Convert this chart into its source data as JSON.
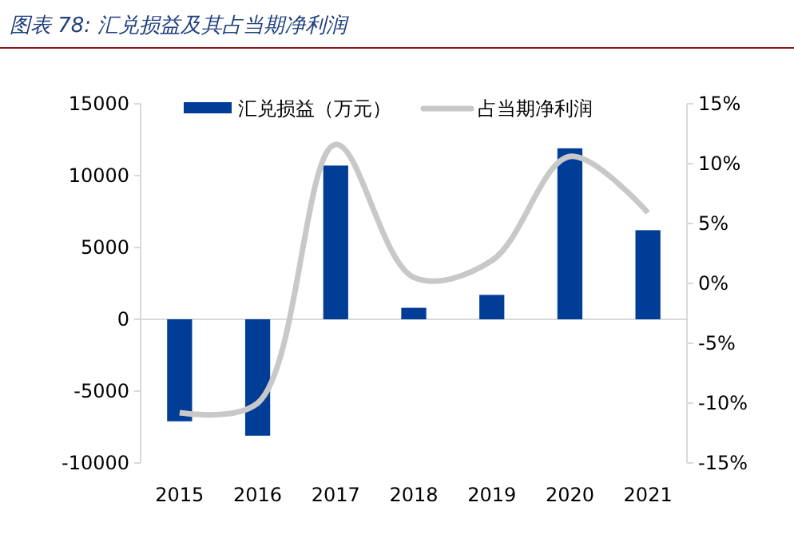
{
  "chart_data": {
    "type": "bar",
    "title": "图表 78:  汇兑损益及其占当期净利润",
    "categories": [
      "2015",
      "2016",
      "2017",
      "2018",
      "2019",
      "2020",
      "2021"
    ],
    "series": [
      {
        "name": "汇兑损益（万元）",
        "color": "#003d97",
        "values": [
          -7100,
          -8100,
          10700,
          800,
          1700,
          11900,
          6200
        ]
      },
      {
        "name": "占当期净利润",
        "type": "line",
        "axis": "y2",
        "color": "#c8c8c8",
        "values": [
          -10.8,
          -10.0,
          11.6,
          0.5,
          1.9,
          10.6,
          5.9
        ]
      }
    ],
    "ylim": [
      -10000,
      15000
    ],
    "yticks": [
      -10000,
      -5000,
      0,
      5000,
      10000,
      15000
    ],
    "y2lim": [
      -15,
      15
    ],
    "y2ticks": [
      {
        "value": -15,
        "label": "-15%"
      },
      {
        "value": -10,
        "label": "-10%"
      },
      {
        "value": -5,
        "label": "-5%"
      },
      {
        "value": 0,
        "label": "0%"
      },
      {
        "value": 5,
        "label": "5%"
      },
      {
        "value": 10,
        "label": "10%"
      },
      {
        "value": 15,
        "label": "15%"
      }
    ],
    "legend": "top",
    "marker": "none",
    "line_style": "solid"
  }
}
